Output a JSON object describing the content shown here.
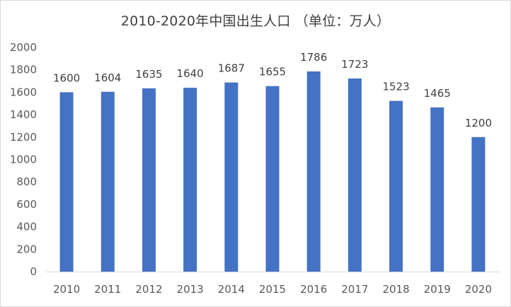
{
  "chart_data": {
    "type": "bar",
    "title": "2010-2020年中国出生人口 （单位：万人）",
    "xlabel": "",
    "ylabel": "",
    "categories": [
      "2010",
      "2011",
      "2012",
      "2013",
      "2014",
      "2015",
      "2016",
      "2017",
      "2018",
      "2019",
      "2020"
    ],
    "values": [
      1600,
      1604,
      1635,
      1640,
      1687,
      1655,
      1786,
      1723,
      1523,
      1465,
      1200
    ],
    "ylim": [
      0,
      2000
    ],
    "y_ticks": [
      0,
      200,
      400,
      600,
      800,
      1000,
      1200,
      1400,
      1600,
      1800,
      2000
    ],
    "grid": false,
    "legend": "none",
    "bar_color": "#4472c4",
    "axis_color": "#d9d9d9",
    "data_labels": true
  }
}
